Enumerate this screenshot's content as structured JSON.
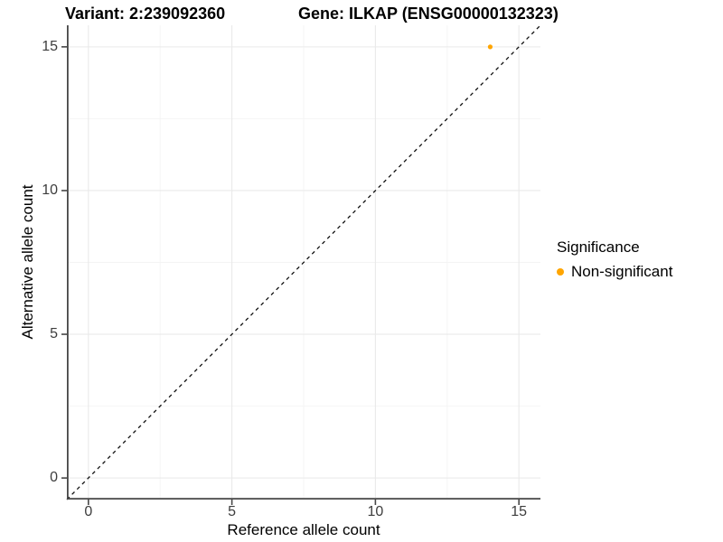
{
  "titles": {
    "variant": "Variant: 2:239092360",
    "gene": "Gene: ILKAP (ENSG00000132323)"
  },
  "chart_data": {
    "type": "scatter",
    "title_left": "Variant: 2:239092360",
    "title_right": "Gene: ILKAP (ENSG00000132323)",
    "xlabel": "Reference allele count",
    "ylabel": "Alternative allele count",
    "xlim": [
      -0.75,
      15.75
    ],
    "ylim": [
      -0.75,
      15.75
    ],
    "x_ticks": [
      0,
      5,
      10,
      15
    ],
    "y_ticks": [
      0,
      5,
      10,
      15
    ],
    "x_minor_ticks": [
      2.5,
      7.5,
      12.5
    ],
    "y_minor_ticks": [
      2.5,
      7.5,
      12.5
    ],
    "grid": true,
    "series": [
      {
        "name": "Non-significant",
        "color": "#FFA500",
        "points": [
          {
            "x": 14,
            "y": 15
          }
        ]
      }
    ],
    "reference_line": {
      "type": "identity",
      "equation": "y = x",
      "style": "dashed",
      "color": "#111111"
    },
    "legend": {
      "title": "Significance",
      "position": "right",
      "items": [
        {
          "label": "Non-significant",
          "color": "#FFA500"
        }
      ]
    },
    "colors": {
      "axis_line": "#474747",
      "tick_text": "#3d3d3d",
      "grid_major": "#e9e9e9",
      "grid_minor": "#f4f4f4",
      "background": "#ffffff"
    }
  }
}
